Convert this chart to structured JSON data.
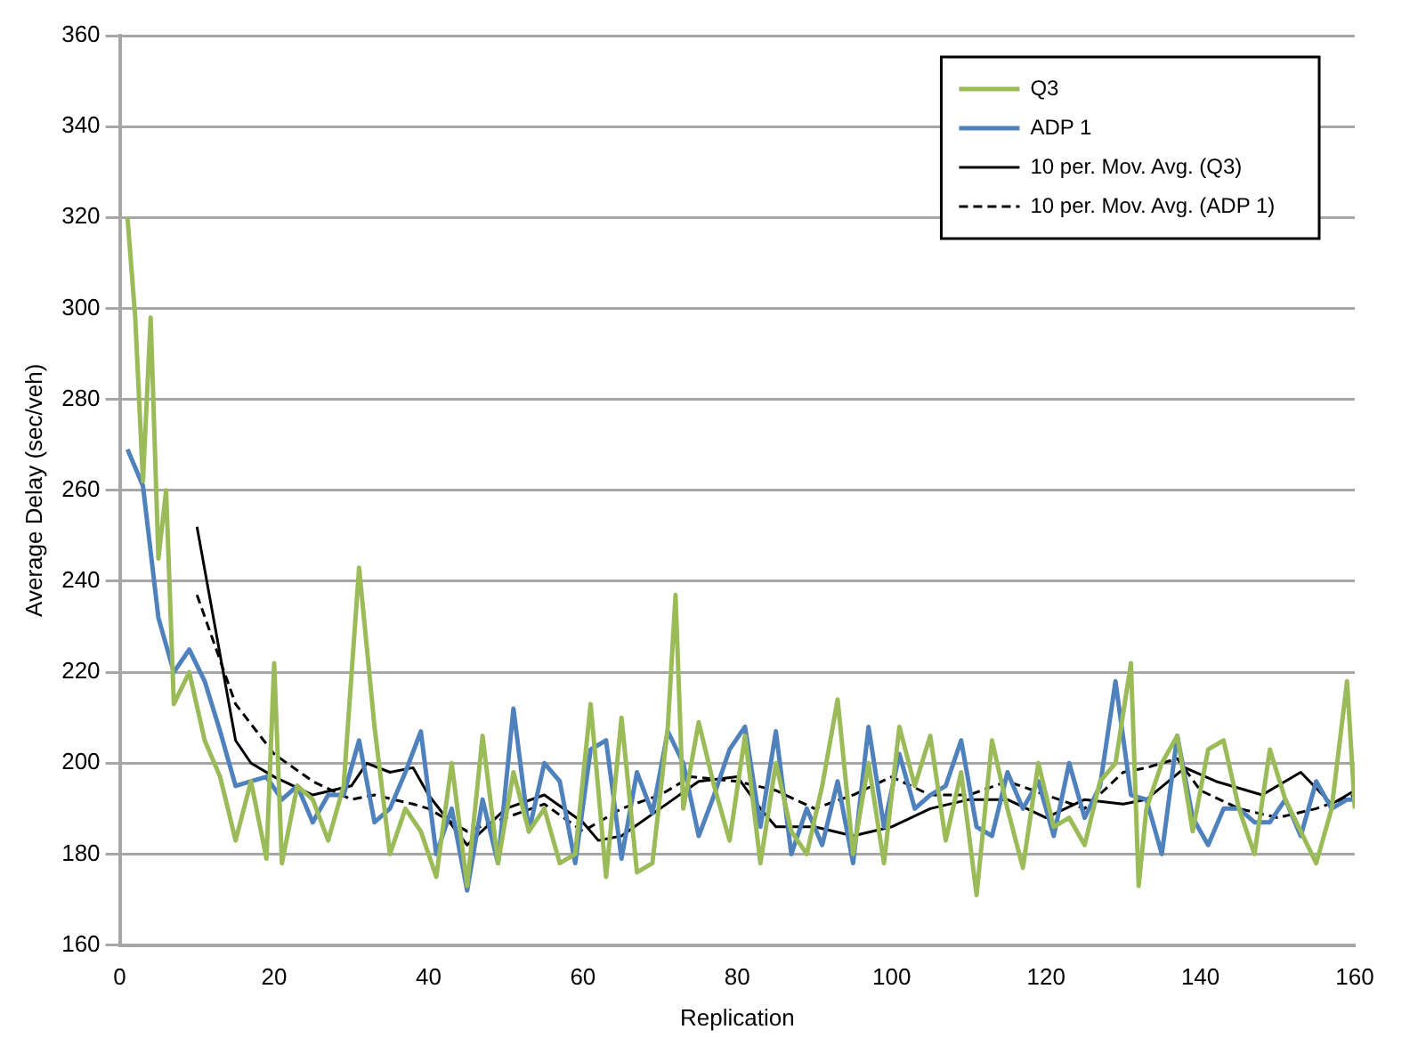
{
  "chart_data": {
    "type": "line",
    "xlabel": "Replication",
    "ylabel": "Average Delay (sec/veh)",
    "xlim": [
      0,
      160
    ],
    "xticks": [
      0,
      20,
      40,
      60,
      80,
      100,
      120,
      140,
      160
    ],
    "ylim": [
      160,
      360
    ],
    "yticks": [
      160,
      180,
      200,
      220,
      240,
      260,
      280,
      300,
      320,
      340,
      360
    ],
    "grid": "y",
    "legend": "top right",
    "marker": "none",
    "series": [
      {
        "name": "Q3",
        "color": "#9bbb59",
        "line_style": "solid",
        "x": [
          1,
          2,
          3,
          4,
          5,
          6,
          7,
          9,
          11,
          13,
          15,
          17,
          19,
          20,
          21,
          23,
          25,
          27,
          29,
          31,
          33,
          35,
          37,
          39,
          41,
          43,
          45,
          47,
          49,
          51,
          53,
          55,
          57,
          59,
          61,
          63,
          65,
          67,
          69,
          71,
          72,
          73,
          75,
          77,
          79,
          81,
          83,
          85,
          87,
          89,
          91,
          93,
          95,
          97,
          99,
          101,
          103,
          105,
          107,
          109,
          111,
          113,
          115,
          117,
          119,
          121,
          123,
          125,
          127,
          129,
          131,
          132,
          133,
          135,
          137,
          139,
          141,
          143,
          145,
          147,
          149,
          151,
          153,
          155,
          157,
          159,
          160
        ],
        "values": [
          320,
          298,
          262,
          298,
          245,
          260,
          213,
          220,
          205,
          197,
          183,
          196,
          179,
          222,
          178,
          195,
          192,
          183,
          195,
          243,
          208,
          180,
          190,
          185,
          175,
          200,
          173,
          206,
          178,
          198,
          185,
          190,
          178,
          180,
          213,
          175,
          210,
          176,
          178,
          208,
          237,
          190,
          209,
          195,
          183,
          206,
          178,
          200,
          185,
          180,
          195,
          214,
          180,
          200,
          178,
          208,
          195,
          206,
          183,
          198,
          171,
          205,
          190,
          177,
          200,
          186,
          188,
          182,
          196,
          200,
          222,
          173,
          190,
          200,
          206,
          185,
          203,
          205,
          190,
          180,
          203,
          192,
          185,
          178,
          190,
          218,
          190
        ]
      },
      {
        "name": "ADP 1",
        "color": "#4f81bd",
        "line_style": "solid",
        "x": [
          1,
          3,
          5,
          7,
          9,
          11,
          13,
          15,
          17,
          19,
          21,
          23,
          25,
          27,
          29,
          31,
          33,
          35,
          37,
          39,
          41,
          43,
          45,
          47,
          49,
          51,
          53,
          55,
          57,
          59,
          61,
          63,
          65,
          67,
          69,
          71,
          73,
          75,
          77,
          79,
          81,
          83,
          85,
          87,
          89,
          91,
          93,
          95,
          97,
          99,
          101,
          103,
          105,
          107,
          109,
          111,
          113,
          115,
          117,
          119,
          121,
          123,
          125,
          127,
          129,
          131,
          133,
          135,
          137,
          139,
          141,
          143,
          145,
          147,
          149,
          151,
          153,
          155,
          157,
          159,
          160
        ],
        "values": [
          269,
          261,
          232,
          220,
          225,
          218,
          207,
          195,
          196,
          197,
          192,
          195,
          187,
          193,
          193,
          205,
          187,
          190,
          198,
          207,
          180,
          190,
          172,
          192,
          178,
          212,
          185,
          200,
          196,
          178,
          203,
          205,
          179,
          198,
          189,
          207,
          200,
          184,
          193,
          203,
          208,
          186,
          207,
          180,
          190,
          182,
          196,
          178,
          208,
          186,
          202,
          190,
          193,
          195,
          205,
          186,
          184,
          198,
          190,
          196,
          184,
          200,
          188,
          195,
          218,
          193,
          192,
          180,
          206,
          188,
          182,
          190,
          190,
          187,
          187,
          192,
          184,
          196,
          190,
          192,
          192
        ]
      },
      {
        "name": "10 per. Mov. Avg. (Q3)",
        "color": "#000000",
        "line_style": "solid",
        "x": [
          10,
          15,
          17,
          20,
          25,
          30,
          32,
          35,
          38,
          40,
          45,
          50,
          55,
          60,
          62,
          65,
          70,
          75,
          80,
          83,
          85,
          90,
          95,
          100,
          105,
          110,
          115,
          120,
          125,
          130,
          133,
          138,
          142,
          148,
          150,
          153,
          157,
          160
        ],
        "values": [
          252,
          205,
          200,
          197,
          193,
          195,
          200,
          198,
          199,
          193,
          182,
          190,
          193,
          187,
          183,
          184,
          190,
          196,
          197,
          190,
          186,
          186,
          184,
          186,
          190,
          192,
          192,
          188,
          192,
          191,
          192,
          199,
          196,
          193,
          195,
          198,
          191,
          194
        ]
      },
      {
        "name": "10 per. Mov. Avg. (ADP 1)",
        "color": "#000000",
        "line_style": "dashed",
        "x": [
          10,
          15,
          20,
          25,
          30,
          33,
          38,
          40,
          45,
          50,
          55,
          60,
          62,
          65,
          70,
          74,
          80,
          85,
          90,
          95,
          100,
          105,
          110,
          115,
          120,
          125,
          130,
          133,
          137,
          140,
          145,
          150,
          155,
          160
        ],
        "values": [
          237,
          213,
          202,
          196,
          192,
          193,
          191,
          190,
          185,
          188,
          191,
          185,
          187,
          190,
          193,
          197,
          196,
          194,
          190,
          193,
          197,
          193,
          193,
          196,
          193,
          190,
          198,
          199,
          201,
          194,
          190,
          188,
          190,
          193
        ]
      }
    ]
  }
}
